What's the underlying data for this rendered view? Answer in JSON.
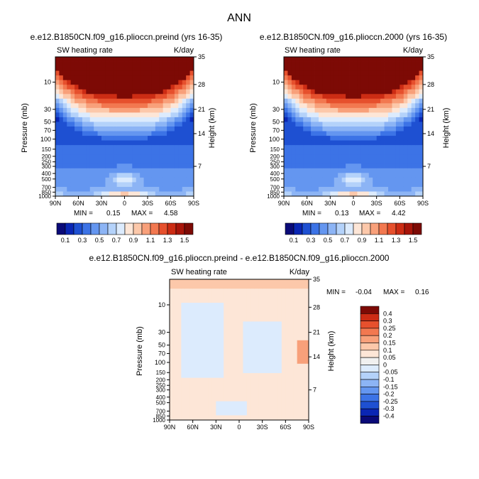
{
  "page_title": "ANN",
  "colors": {
    "scale": [
      "#0a0a78",
      "#0a26b4",
      "#1e50d2",
      "#3c73e6",
      "#6496f0",
      "#8cb4f5",
      "#b4d2fa",
      "#dcebfd",
      "#fde6d7",
      "#fcc8aa",
      "#f8a07a",
      "#f27850",
      "#e6502d",
      "#cc2c14",
      "#a8150a",
      "#7d0a05"
    ],
    "diff_scale": [
      "#0a0a78",
      "#0a26b4",
      "#1e50d2",
      "#3c73e6",
      "#6496f0",
      "#8cb4f5",
      "#b4d2fa",
      "#dcebfd",
      "#f0f0f0",
      "#fde6d7",
      "#fcc8aa",
      "#f8a07a",
      "#f27850",
      "#e6502d",
      "#cc2c14",
      "#7d0a05"
    ]
  },
  "chart_data": [
    {
      "type": "heatmap",
      "title": "e.e12.B1850CN.f09_g16.plioccn.preind (yrs 16-35)",
      "subtitle_left": "SW heating rate",
      "subtitle_right": "K/day",
      "ylabel": "Pressure (mb)",
      "ylabel_right": "Height (km)",
      "x_ticks": [
        "90N",
        "60N",
        "30N",
        "0",
        "30S",
        "60S",
        "90S"
      ],
      "y_ticks": [
        "10",
        "30",
        "50",
        "70",
        "100",
        "150",
        "200",
        "250",
        "300",
        "400",
        "500",
        "700",
        "850",
        "1000"
      ],
      "y_right_ticks": [
        "35",
        "28",
        "21",
        "14",
        "7"
      ],
      "min_label": "MIN =",
      "min_value": "0.15",
      "max_label": "MAX =",
      "max_value": "4.58",
      "colorbar_labels": [
        "0.1",
        "0.3",
        "0.5",
        "0.7",
        "0.9",
        "1.1",
        "1.3",
        "1.5"
      ]
    },
    {
      "type": "heatmap",
      "title": "e.e12.B1850CN.f09_g16.plioccn.2000 (yrs 16-35)",
      "subtitle_left": "SW heating rate",
      "subtitle_right": "K/day",
      "ylabel": "Pressure (mb)",
      "ylabel_right": "Height (km)",
      "x_ticks": [
        "90N",
        "60N",
        "30N",
        "0",
        "30S",
        "60S",
        "90S"
      ],
      "y_ticks": [
        "10",
        "30",
        "50",
        "70",
        "100",
        "150",
        "200",
        "250",
        "300",
        "400",
        "500",
        "700",
        "850",
        "1000"
      ],
      "y_right_ticks": [
        "35",
        "28",
        "21",
        "14",
        "7"
      ],
      "min_label": "MIN =",
      "min_value": "0.13",
      "max_label": "MAX =",
      "max_value": "4.42",
      "colorbar_labels": [
        "0.1",
        "0.3",
        "0.5",
        "0.7",
        "0.9",
        "1.1",
        "1.3",
        "1.5"
      ]
    },
    {
      "type": "heatmap",
      "title": "e.e12.B1850CN.f09_g16.plioccn.preind - e.e12.B1850CN.f09_g16.plioccn.2000",
      "subtitle_left": "SW heating rate",
      "subtitle_right": "K/day",
      "ylabel": "Pressure (mb)",
      "ylabel_right": "Height (km)",
      "x_ticks": [
        "90N",
        "60N",
        "30N",
        "0",
        "30S",
        "60S",
        "90S"
      ],
      "y_ticks": [
        "10",
        "30",
        "50",
        "70",
        "100",
        "150",
        "200",
        "250",
        "300",
        "400",
        "500",
        "700",
        "850",
        "1000"
      ],
      "y_right_ticks": [
        "35",
        "28",
        "21",
        "14",
        "7"
      ],
      "min_label": "MIN =",
      "min_value": "-0.04",
      "max_label": "MAX =",
      "max_value": "0.16",
      "colorbar_labels": [
        "0.4",
        "0.3",
        "0.25",
        "0.2",
        "0.15",
        "0.1",
        "0.05",
        "0",
        "-0.05",
        "-0.1",
        "-0.15",
        "-0.2",
        "-0.25",
        "-0.3",
        "-0.4"
      ]
    }
  ]
}
